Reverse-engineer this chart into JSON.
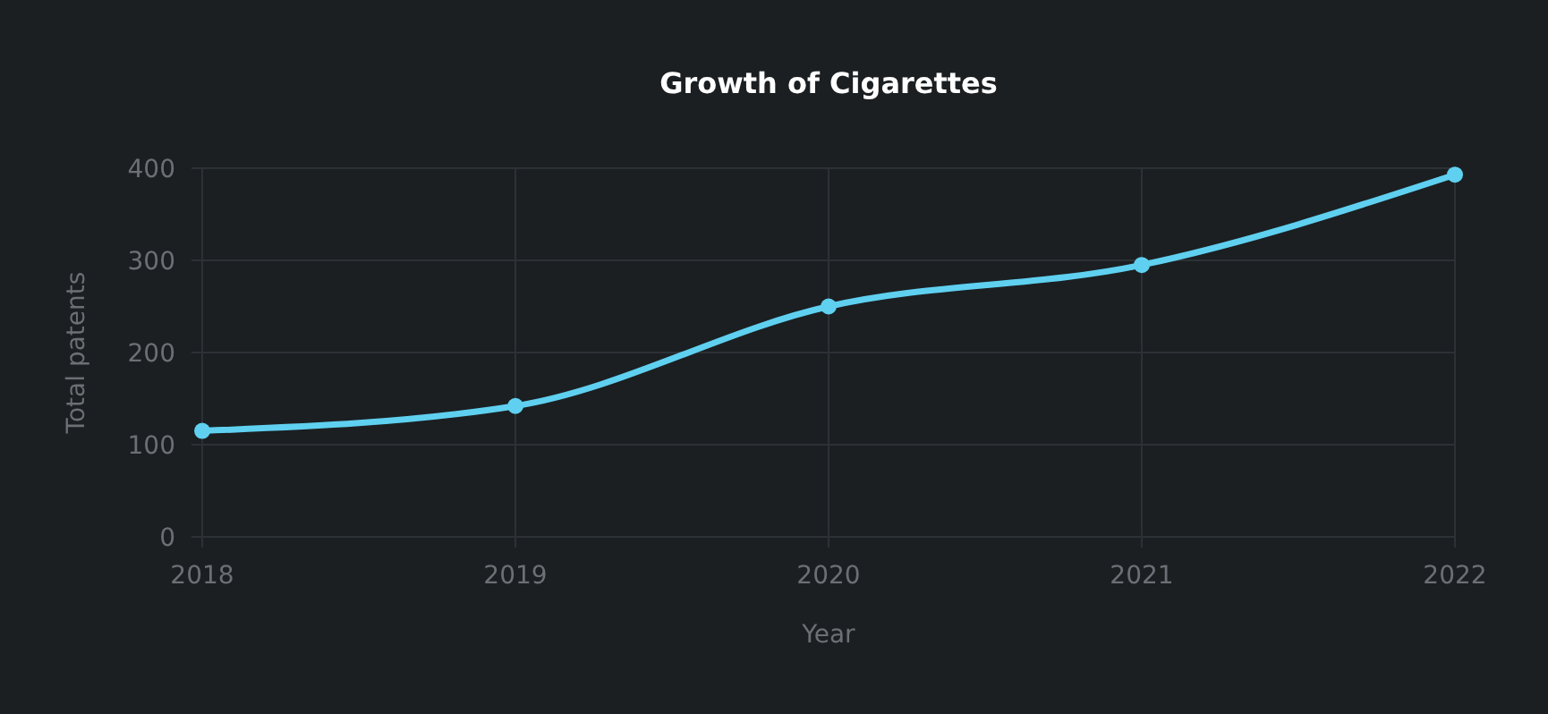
{
  "chart_data": {
    "type": "line",
    "title": "Growth of Cigarettes",
    "xlabel": "Year",
    "ylabel": "Total patents",
    "x": [
      2018,
      2019,
      2020,
      2021,
      2022
    ],
    "series": [
      {
        "color": "#5fd0f0",
        "values": [
          115,
          142,
          250,
          295,
          393
        ]
      }
    ],
    "xlim": [
      2018,
      2022
    ],
    "xticks": [
      2018,
      2019,
      2020,
      2021,
      2022
    ],
    "ylim": [
      0,
      400
    ],
    "yticks": [
      0,
      100,
      200,
      300,
      400
    ],
    "grid": true,
    "marker": "circle"
  }
}
